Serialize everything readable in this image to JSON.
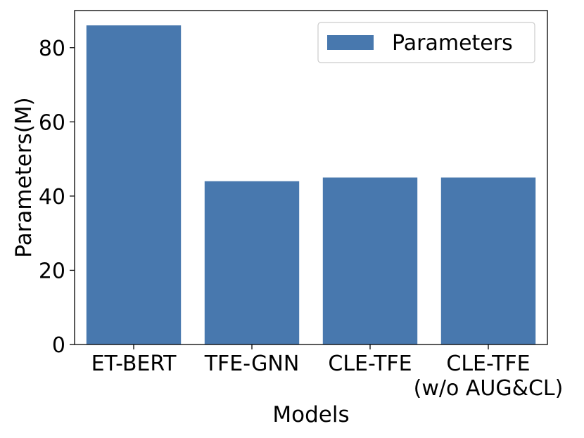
{
  "chart_data": {
    "type": "bar",
    "categories": [
      [
        "ET-BERT"
      ],
      [
        "TFE-GNN"
      ],
      [
        "CLE-TFE"
      ],
      [
        "CLE-TFE",
        "(w/o AUG&CL)"
      ]
    ],
    "series": [
      {
        "name": "Parameters",
        "values": [
          86,
          44,
          45,
          45
        ]
      }
    ],
    "xlabel": "Models",
    "ylabel": "Parameters(M)",
    "ylim": [
      0,
      90
    ],
    "yticks": [
      0,
      20,
      40,
      60,
      80
    ],
    "grid": false,
    "legend_position": "top-right",
    "colors": {
      "bar": "#4878ae",
      "axis": "#000000",
      "legend_border": "#cccccc"
    }
  }
}
